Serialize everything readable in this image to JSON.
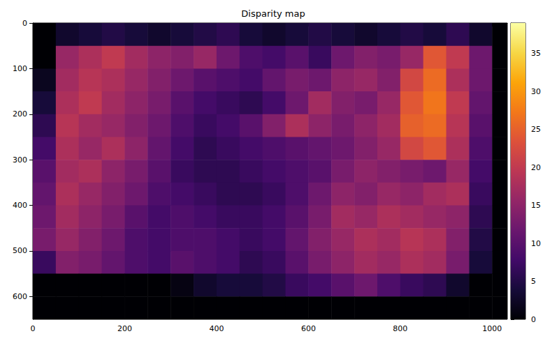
{
  "chart_data": {
    "type": "heatmap",
    "title": "Disparity map",
    "xlim": [
      0,
      1033
    ],
    "ylim": [
      650,
      0
    ],
    "xticks": [
      0,
      200,
      400,
      600,
      800,
      1000
    ],
    "yticks": [
      0,
      100,
      200,
      300,
      400,
      500,
      600
    ],
    "grid": false,
    "x_edges": [
      0,
      50,
      100,
      150,
      200,
      250,
      300,
      350,
      400,
      450,
      500,
      550,
      600,
      650,
      700,
      750,
      800,
      850,
      900,
      950,
      1000,
      1033
    ],
    "y_edges": [
      0,
      50,
      100,
      150,
      200,
      250,
      300,
      350,
      400,
      450,
      500,
      550,
      600,
      650
    ],
    "cells": [
      [
        0,
        3,
        4,
        5,
        4,
        3,
        4,
        5,
        6,
        4,
        3,
        4,
        5,
        4,
        3,
        4,
        5,
        4,
        6,
        3,
        0
      ],
      [
        0,
        16,
        18,
        20,
        17,
        15,
        14,
        16,
        12,
        9,
        8,
        10,
        7,
        12,
        14,
        13,
        16,
        24,
        20,
        12,
        0
      ],
      [
        2,
        17,
        19,
        18,
        16,
        14,
        12,
        10,
        9,
        8,
        11,
        13,
        12,
        15,
        16,
        14,
        22,
        26,
        18,
        12,
        0
      ],
      [
        4,
        18,
        20,
        17,
        15,
        13,
        10,
        8,
        7,
        6,
        8,
        12,
        17,
        14,
        13,
        16,
        24,
        27,
        20,
        11,
        0
      ],
      [
        6,
        19,
        17,
        16,
        14,
        12,
        9,
        7,
        8,
        10,
        14,
        18,
        15,
        13,
        15,
        17,
        25,
        26,
        19,
        10,
        0
      ],
      [
        8,
        18,
        16,
        18,
        15,
        11,
        8,
        6,
        7,
        8,
        9,
        10,
        11,
        12,
        14,
        16,
        22,
        24,
        18,
        9,
        0
      ],
      [
        10,
        17,
        18,
        15,
        13,
        10,
        7,
        6,
        6,
        7,
        8,
        9,
        10,
        13,
        15,
        14,
        13,
        12,
        16,
        8,
        0
      ],
      [
        11,
        18,
        16,
        14,
        12,
        9,
        8,
        7,
        6,
        6,
        7,
        9,
        12,
        15,
        14,
        16,
        15,
        17,
        18,
        7,
        0
      ],
      [
        12,
        17,
        15,
        13,
        10,
        8,
        9,
        8,
        7,
        7,
        8,
        10,
        13,
        17,
        16,
        18,
        17,
        16,
        15,
        6,
        0
      ],
      [
        13,
        16,
        14,
        12,
        9,
        8,
        9,
        9,
        8,
        7,
        8,
        11,
        14,
        16,
        18,
        17,
        19,
        18,
        14,
        5,
        0
      ],
      [
        7,
        14,
        13,
        11,
        9,
        8,
        10,
        9,
        8,
        6,
        7,
        10,
        13,
        15,
        17,
        16,
        18,
        17,
        13,
        4,
        0
      ],
      [
        0,
        0,
        0,
        0,
        0,
        0,
        1,
        3,
        4,
        4,
        5,
        7,
        8,
        10,
        12,
        9,
        7,
        6,
        3,
        0,
        0
      ],
      [
        0,
        0,
        0,
        0,
        0,
        0,
        0,
        0,
        0,
        0,
        0,
        0,
        0,
        0,
        0,
        0,
        0,
        0,
        0,
        0,
        0
      ]
    ],
    "colorbar": {
      "range": [
        0,
        39
      ],
      "ticks": [
        0,
        5,
        10,
        15,
        20,
        25,
        30,
        35
      ]
    }
  }
}
